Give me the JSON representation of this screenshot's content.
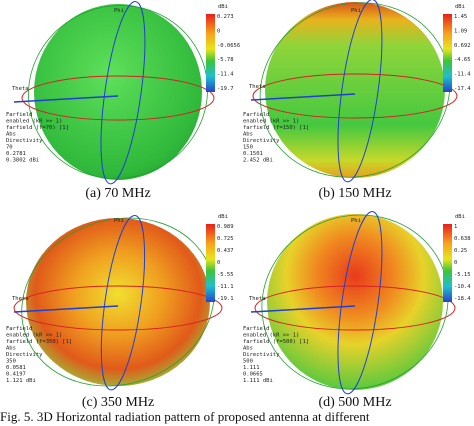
{
  "panels": [
    {
      "caption": "(a) 70 MHz",
      "unit": "dBi",
      "scale": [
        "0.273",
        "0",
        "-0.0656",
        "-5.78",
        "-11.4",
        "-19.7"
      ],
      "info": [
        "Farfield",
        "enabled (kR >> 1)",
        "farfield (f=70) [1]",
        "Abs",
        "Directivity",
        "70",
        "0.2781",
        "0.3802 dBi"
      ],
      "theta": "Theta",
      "phi": "Phi"
    },
    {
      "caption": "(b) 150 MHz",
      "unit": "dBi",
      "scale": [
        "1.45",
        "1.09",
        "0.692",
        "-4.65",
        "-11.4",
        "-17.4"
      ],
      "info": [
        "Farfield",
        "enabled (kR >> 1)",
        "farfield (f=150) [1]",
        "Abs",
        "Directivity",
        "150",
        "0.1501",
        "2.452 dBi"
      ],
      "theta": "Theta",
      "phi": "Phi"
    },
    {
      "caption": "(c) 350 MHz",
      "unit": "dBi",
      "scale": [
        "0.989",
        "0.725",
        "0.437",
        "0",
        "-5.55",
        "-11.1",
        "-19.1"
      ],
      "info": [
        "Farfield",
        "enabled (kR >> 1)",
        "farfield (f=350) [1]",
        "Abs",
        "Directivity",
        "350",
        "0.0581",
        "0.4197",
        "1.121 dBi"
      ],
      "theta": "Theta",
      "phi": "Phi"
    },
    {
      "caption": "(d) 500 MHz",
      "unit": "dBi",
      "scale": [
        "1",
        "0.638",
        "0.25",
        "0",
        "-5.15",
        "-10.4",
        "-18.4"
      ],
      "info": [
        "Farfield",
        "enabled (kR >> 1)",
        "farfield (f=500) [1]",
        "Abs",
        "Directivity",
        "500",
        "1.111",
        "0.0665",
        "1.111 dBi"
      ],
      "theta": "Theta",
      "phi": "Phi"
    }
  ],
  "figure_caption": "Fig. 5. 3D Horizontal radiation pattern of proposed antenna at different"
}
